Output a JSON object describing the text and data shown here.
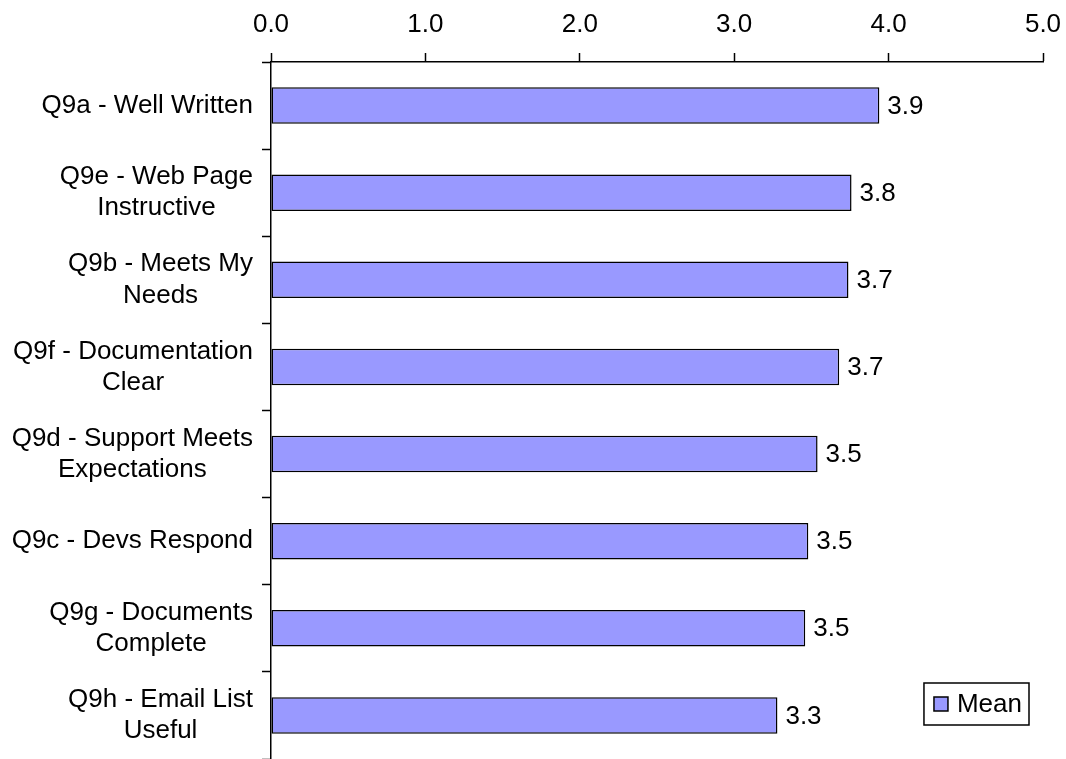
{
  "chart_data": {
    "type": "bar",
    "orientation": "horizontal",
    "categories": [
      "Q9a - Well Written",
      "Q9e - Web Page Instructive",
      "Q9b - Meets My Needs",
      "Q9f - Documentation Clear",
      "Q9d - Support Meets Expectations",
      "Q9c - Devs Respond",
      "Q9g - Documents Complete",
      "Q9h - Email List Useful"
    ],
    "series": [
      {
        "name": "Mean",
        "color": "#9999ff",
        "values": [
          3.94,
          3.76,
          3.74,
          3.68,
          3.54,
          3.48,
          3.46,
          3.28
        ],
        "value_labels": [
          "3.9",
          "3.8",
          "3.7",
          "3.7",
          "3.5",
          "3.5",
          "3.5",
          "3.3"
        ]
      }
    ],
    "xlim": [
      0,
      5
    ],
    "xticks": [
      {
        "value": 0,
        "label": "0.0"
      },
      {
        "value": 1,
        "label": "1.0"
      },
      {
        "value": 2,
        "label": "2.0"
      },
      {
        "value": 3,
        "label": "3.0"
      },
      {
        "value": 4,
        "label": "4.0"
      },
      {
        "value": 5,
        "label": "5.0"
      }
    ],
    "legend": "bottom right"
  }
}
